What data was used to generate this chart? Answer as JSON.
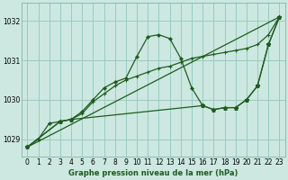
{
  "title": "Graphe pression niveau de la mer (hPa)",
  "bg_color": "#cce8e0",
  "grid_color": "#99ccbf",
  "line_color": "#1e5c1e",
  "ylim": [
    1028.55,
    1032.45
  ],
  "yticks": [
    1029,
    1030,
    1031,
    1032
  ],
  "xlim": [
    -0.5,
    23.5
  ],
  "xticks": [
    0,
    1,
    2,
    3,
    4,
    5,
    6,
    7,
    8,
    9,
    10,
    11,
    12,
    13,
    14,
    15,
    16,
    17,
    18,
    19,
    20,
    21,
    22,
    23
  ],
  "series1_x": [
    0,
    1,
    2,
    3,
    4,
    5,
    6,
    7,
    8,
    9,
    10,
    11,
    12,
    13,
    14,
    15,
    16,
    17,
    18,
    19,
    20,
    21,
    22,
    23
  ],
  "series1_y": [
    1028.8,
    1029.0,
    1029.4,
    1029.45,
    1029.5,
    1029.7,
    1030.0,
    1030.3,
    1030.45,
    1030.55,
    1031.1,
    1031.6,
    1031.65,
    1031.55,
    1031.05,
    1030.3,
    1029.85,
    1029.75,
    1029.8,
    1029.8,
    1030.0,
    1030.35,
    1031.4,
    1032.1
  ],
  "series2_x": [
    0,
    3,
    4,
    5,
    6,
    7,
    8,
    9,
    10,
    11,
    12,
    13,
    14,
    15,
    16,
    17,
    18,
    19,
    20,
    21,
    22,
    23
  ],
  "series2_y": [
    1028.8,
    1029.45,
    1029.5,
    1029.65,
    1029.95,
    1030.15,
    1030.35,
    1030.5,
    1030.6,
    1030.7,
    1030.8,
    1030.85,
    1030.95,
    1031.05,
    1031.1,
    1031.15,
    1031.2,
    1031.25,
    1031.3,
    1031.4,
    1031.65,
    1032.1
  ],
  "series3_x": [
    0,
    23
  ],
  "series3_y": [
    1028.8,
    1032.1
  ],
  "series4_x": [
    0,
    3,
    4,
    16,
    17,
    18,
    19,
    20,
    21,
    22,
    23
  ],
  "series4_y": [
    1028.8,
    1029.45,
    1029.5,
    1029.85,
    1029.75,
    1029.8,
    1029.8,
    1030.0,
    1030.35,
    1031.4,
    1032.1
  ]
}
